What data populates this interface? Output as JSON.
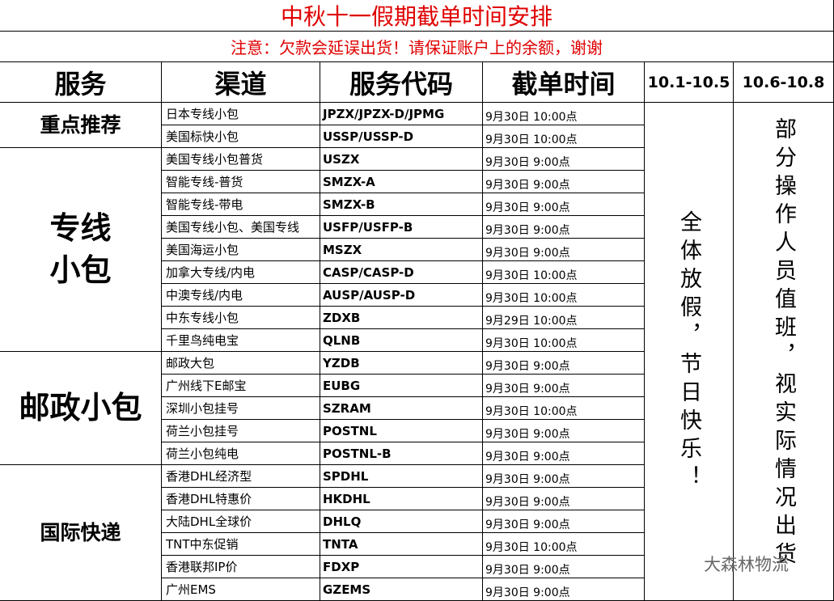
{
  "title": "中秋十一假期截单时间安排",
  "notice": "注意：欠款会延误出货！请保证账户上的余额，谢谢",
  "headers": [
    "服务",
    "渠道",
    "服务代码",
    "截单时间",
    "10.1-10.5",
    "10.6-10.8"
  ],
  "groups": [
    {
      "name": "重点推荐",
      "rows": [
        {
          "channel": "日本专线小包",
          "code": "JPZX/JPZX-D/JPMG",
          "cutoff": "9月30日 10:00点"
        },
        {
          "channel": "美国标快小包",
          "code": "USSP/USSP-D",
          "cutoff": "9月30日 10:00点"
        }
      ]
    },
    {
      "name": "专线小包",
      "rows": [
        {
          "channel": "美国专线小包普货",
          "code": "USZX",
          "cutoff": "9月30日 9:00点"
        },
        {
          "channel": "智能专线-普货",
          "code": "SMZX-A",
          "cutoff": "9月30日 9:00点"
        },
        {
          "channel": "智能专线-带电",
          "code": "SMZX-B",
          "cutoff": "9月30日 9:00点"
        },
        {
          "channel": "美国专线小包、美国专线",
          "code": "USFP/USFP-B",
          "cutoff": "9月30日 9:00点"
        },
        {
          "channel": "美国海运小包",
          "code": "MSZX",
          "cutoff": "9月30日 9:00点"
        },
        {
          "channel": "加拿大专线/内电",
          "code": "CASP/CASP-D",
          "cutoff": "9月30日 10:00点"
        },
        {
          "channel": "中澳专线/内电",
          "code": "AUSP/AUSP-D",
          "cutoff": "9月30日 10:00点"
        },
        {
          "channel": "中东专线小包",
          "code": "ZDXB",
          "cutoff": "9月29日 10:00点"
        },
        {
          "channel": "千里鸟纯电宝",
          "code": "QLNB",
          "cutoff": "9月30日 10:00点"
        }
      ]
    },
    {
      "name": "邮政小包",
      "rows": [
        {
          "channel": "邮政大包",
          "code": "YZDB",
          "cutoff": "9月30日 9:00点"
        },
        {
          "channel": "广州线下E邮宝",
          "code": "EUBG",
          "cutoff": "9月30日 9:00点"
        },
        {
          "channel": "深圳小包挂号",
          "code": "SZRAM",
          "cutoff": "9月30日 10:00点"
        },
        {
          "channel": "荷兰小包挂号",
          "code": "POSTNL",
          "cutoff": "9月30日 9:00点"
        },
        {
          "channel": "荷兰小包纯电",
          "code": "POSTNL-B",
          "cutoff": "9月30日 9:00点"
        }
      ]
    },
    {
      "name": "国际快递",
      "rows": [
        {
          "channel": "香港DHL经济型",
          "code": "SPDHL",
          "cutoff": "9月30日 9:00点"
        },
        {
          "channel": "香港DHL特惠价",
          "code": "HKDHL",
          "cutoff": "9月30日 9:00点"
        },
        {
          "channel": "大陆DHL全球价",
          "code": "DHLQ",
          "cutoff": "9月30日 9:00点"
        },
        {
          "channel": "TNT中东促销",
          "code": "TNTA",
          "cutoff": "9月30日 10:00点"
        },
        {
          "channel": "香港联邦IP价",
          "code": "FDXP",
          "cutoff": "9月30日 9:00点"
        },
        {
          "channel": "广州EMS",
          "code": "GZEMS",
          "cutoff": "9月30日 9:00点"
        }
      ]
    }
  ],
  "note_10_1": "全体放假，节日快乐！",
  "note_10_6": "部分操作人员值班，视实际情况出货",
  "watermark": "大森林物流"
}
